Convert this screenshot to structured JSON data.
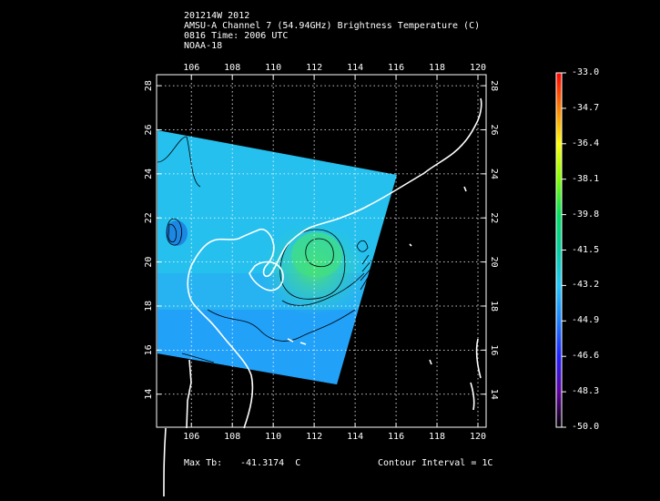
{
  "header": {
    "line1": "201214W 2012",
    "line2": "AMSU-A Channel 7 (54.94GHz) Brightness Temperature (C)",
    "line3": "0816 Time: 2006 UTC",
    "line4": "NOAA-18"
  },
  "map": {
    "lon_ticks": [
      "106",
      "108",
      "110",
      "112",
      "114",
      "116",
      "118",
      "120"
    ],
    "lat_ticks": [
      "14",
      "16",
      "18",
      "20",
      "22",
      "24",
      "26",
      "28"
    ],
    "lon_range": [
      104.3,
      120.4
    ],
    "lat_range": [
      12.5,
      28.5
    ],
    "coastline_color": "#ffffff",
    "graticule_color": "#ffffff",
    "contour_color": "#000000"
  },
  "colorbar": {
    "labels": [
      "-33.0",
      "-34.7",
      "-36.4",
      "-38.1",
      "-39.8",
      "-41.5",
      "-43.2",
      "-44.9",
      "-46.6",
      "-48.3",
      "-50.0"
    ],
    "colors": [
      "#ff0000",
      "#ff8000",
      "#ffff00",
      "#80ff00",
      "#00e060",
      "#00d0a0",
      "#20c8ff",
      "#1a80ff",
      "#2020ff",
      "#6000a0",
      "#000000"
    ]
  },
  "footer": {
    "max_label": "Max Tb:",
    "max_value": "-41.3174  C",
    "contour_label": "Contour Interval = 1C"
  }
}
